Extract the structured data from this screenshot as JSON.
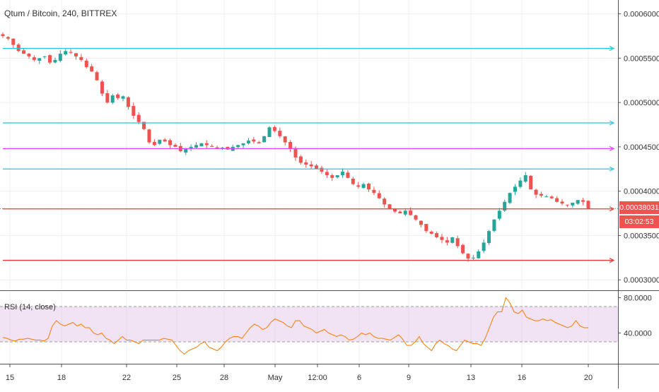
{
  "chart_data": {
    "type": "candlestick",
    "title": "Qtum / Bitcoin, 240, BITTREX",
    "price_axis": {
      "ticks": [
        "0.00060000",
        "0.00055000",
        "0.00050000",
        "0.00045000",
        "0.00040000",
        "0.00035000",
        "0.00030000"
      ],
      "values": [
        0.0006,
        0.00055,
        0.0005,
        0.00045,
        0.0004,
        0.00035,
        0.0003
      ],
      "range": [
        0.000289,
        0.0006156
      ]
    },
    "time_axis": {
      "labels": [
        "15",
        "18",
        "22",
        "25",
        "28",
        "May",
        "12:00",
        "6",
        "9",
        "13",
        "16",
        "20"
      ]
    },
    "last_price_label": "0.00038031",
    "countdown_label": "03:02:53",
    "close_series_approx": [
      0.000575,
      0.000572,
      0.000565,
      0.000558,
      0.000555,
      0.000552,
      0.000548,
      0.00055,
      0.000552,
      0.000545,
      0.000548,
      0.000555,
      0.000558,
      0.000556,
      0.000552,
      0.000548,
      0.00054,
      0.000535,
      0.000525,
      0.00051,
      0.0005,
      0.000508,
      0.000505,
      0.000507,
      0.000495,
      0.000485,
      0.000478,
      0.00047,
      0.000455,
      0.000452,
      0.000458,
      0.000456,
      0.000452,
      0.00045,
      0.000445,
      0.000448,
      0.00045,
      0.000452,
      0.000454,
      0.000452,
      0.00045,
      0.000448,
      0.000449,
      0.000447,
      0.00045,
      0.000452,
      0.000454,
      0.000457,
      0.000456,
      0.000454,
      0.000462,
      0.000472,
      0.000468,
      0.000462,
      0.000455,
      0.000448,
      0.000438,
      0.000432,
      0.00043,
      0.000428,
      0.000425,
      0.000422,
      0.000418,
      0.000415,
      0.000418,
      0.000422,
      0.000415,
      0.000408,
      0.000405,
      0.000408,
      0.000402,
      0.000398,
      0.000392,
      0.000385,
      0.00038,
      0.000377,
      0.000375,
      0.000378,
      0.000373,
      0.000368,
      0.000362,
      0.000355,
      0.000352,
      0.000348,
      0.000345,
      0.000342,
      0.000348,
      0.000338,
      0.00033,
      0.000324,
      0.000325,
      0.000332,
      0.000342,
      0.000355,
      0.000368,
      0.000378,
      0.000388,
      0.000398,
      0.000405,
      0.000412,
      0.000418,
      0.000402,
      0.000396,
      0.000395,
      0.000394,
      0.000392,
      0.000388,
      0.000386,
      0.000384,
      0.000387,
      0.00039,
      0.000388,
      0.00038
    ],
    "rsi": {
      "label": "RSI (14, close)",
      "ticks": [
        "80.0000",
        "40.0000"
      ],
      "tick_values": [
        80,
        40
      ],
      "band": [
        30,
        70
      ],
      "range": [
        6,
        86
      ],
      "values_approx": [
        35,
        34,
        32,
        31,
        33,
        33,
        34,
        33,
        32,
        32,
        31,
        34,
        48,
        54,
        50,
        48,
        50,
        52,
        48,
        50,
        46,
        46,
        40,
        38,
        40,
        34,
        32,
        28,
        32,
        36,
        32,
        32,
        30,
        28,
        32,
        32,
        32,
        32,
        32,
        34,
        33,
        32,
        26,
        20,
        16,
        20,
        22,
        24,
        28,
        30,
        24,
        22,
        20,
        24,
        30,
        34,
        36,
        36,
        34,
        40,
        46,
        50,
        48,
        44,
        46,
        52,
        56,
        54,
        52,
        48,
        46,
        54,
        54,
        48,
        46,
        44,
        40,
        42,
        44,
        40,
        38,
        36,
        38,
        36,
        32,
        33,
        36,
        40,
        38,
        40,
        36,
        34,
        34,
        33,
        32,
        35,
        38,
        33,
        26,
        26,
        30,
        36,
        28,
        24,
        20,
        28,
        32,
        28,
        26,
        22,
        20,
        26,
        32,
        30,
        28,
        28,
        26,
        34,
        46,
        58,
        64,
        64,
        80,
        74,
        64,
        62,
        66,
        58,
        56,
        54,
        54,
        56,
        54,
        55,
        52,
        50,
        48,
        46,
        48,
        54,
        48,
        46,
        46
      ]
    },
    "horizontal_rays": [
      {
        "price": 0.000561,
        "color": "#26c6da"
      },
      {
        "price": 0.000477,
        "color": "#26c6da"
      },
      {
        "price": 0.000448,
        "color": "#e040fb"
      },
      {
        "price": 0.000425,
        "color": "#26c6da"
      },
      {
        "price": 0.00038,
        "color": "#e53935"
      },
      {
        "price": 0.000322,
        "color": "#e53935"
      }
    ],
    "colors": {
      "up": "#26a69a",
      "down": "#ef5350",
      "rsi_line": "#f57c00",
      "rsi_band": "#e1bee7",
      "grid": "#eceff1"
    }
  }
}
